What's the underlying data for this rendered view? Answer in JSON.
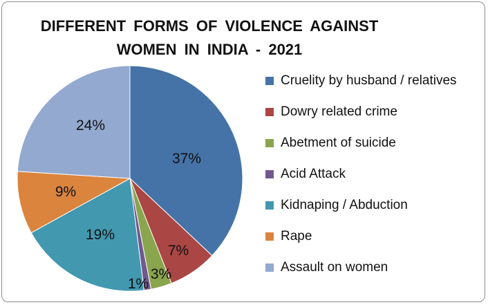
{
  "chart_data": {
    "type": "pie",
    "title_lines": [
      "DIFFERENT  FORMS  OF  VIOLENCE  AGAINST",
      "WOMEN  IN  INDIA  - 2021"
    ],
    "legend_position": "right",
    "categories": [
      "Cruelity by husband / relatives",
      "Dowry related crime",
      "Abetment of suicide",
      "Acid Attack",
      "Kidnaping / Abduction",
      "Rape",
      "Assault on women"
    ],
    "values": [
      37,
      7,
      3,
      1,
      19,
      9,
      24
    ],
    "labels": [
      "37%",
      "7%",
      "3%",
      "1%",
      "19%",
      "9%",
      "24%"
    ],
    "colors": [
      "#4573a7",
      "#aa4643",
      "#89a54e",
      "#71588f",
      "#4298af",
      "#db843d",
      "#93a9cf"
    ]
  }
}
